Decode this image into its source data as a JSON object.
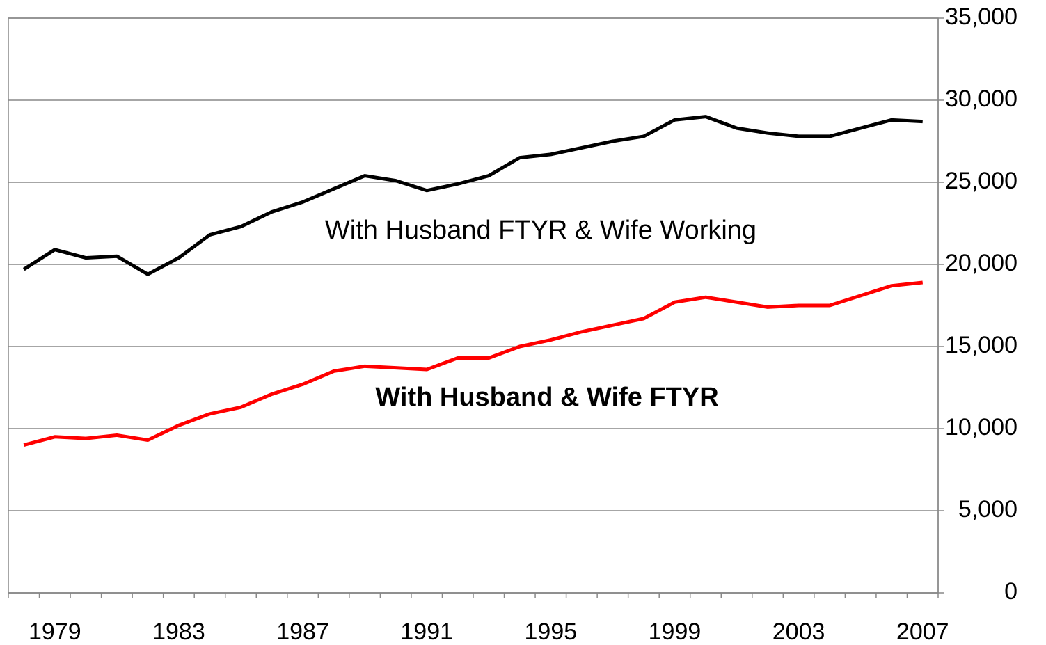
{
  "chart_data": {
    "type": "line",
    "categories": [
      null,
      "1979",
      null,
      null,
      null,
      "1983",
      null,
      null,
      null,
      "1987",
      null,
      null,
      null,
      "1991",
      null,
      null,
      null,
      "1995",
      null,
      null,
      null,
      "1999",
      null,
      null,
      null,
      "2003",
      null,
      null,
      null,
      "2007"
    ],
    "series": [
      {
        "name": "With Husband FTYR & Wife Working",
        "color": "#000000",
        "values": [
          19700,
          20900,
          20400,
          20500,
          19400,
          20400,
          21800,
          22300,
          23200,
          23800,
          24600,
          25400,
          25100,
          24500,
          24900,
          25400,
          26500,
          26700,
          27100,
          27500,
          27800,
          28800,
          29000,
          28300,
          28000,
          27800,
          27800,
          28300,
          28800,
          28700
        ]
      },
      {
        "name": "With Husband & Wife FTYR",
        "color": "#ff0000",
        "values": [
          9000,
          9500,
          9400,
          9600,
          9300,
          10200,
          10900,
          11300,
          12100,
          12700,
          13500,
          13800,
          13700,
          13600,
          14300,
          14300,
          15000,
          15400,
          15900,
          16300,
          16700,
          17700,
          18000,
          17700,
          17400,
          17500,
          17500,
          18100,
          18700,
          18900
        ]
      }
    ],
    "ylim": [
      0,
      35000
    ],
    "yticks": [
      0,
      {
        "value": 5000,
        "label": "5,000"
      },
      {
        "value": 10000,
        "label": "10,000"
      },
      {
        "value": 15000,
        "label": "15,000"
      },
      {
        "value": 20000,
        "label": "20,000"
      },
      {
        "value": 25000,
        "label": "25,000"
      },
      {
        "value": 30000,
        "label": "30,000"
      },
      {
        "value": 35000,
        "label": "35,000"
      }
    ],
    "grid": true,
    "y_axis_side": "right"
  }
}
